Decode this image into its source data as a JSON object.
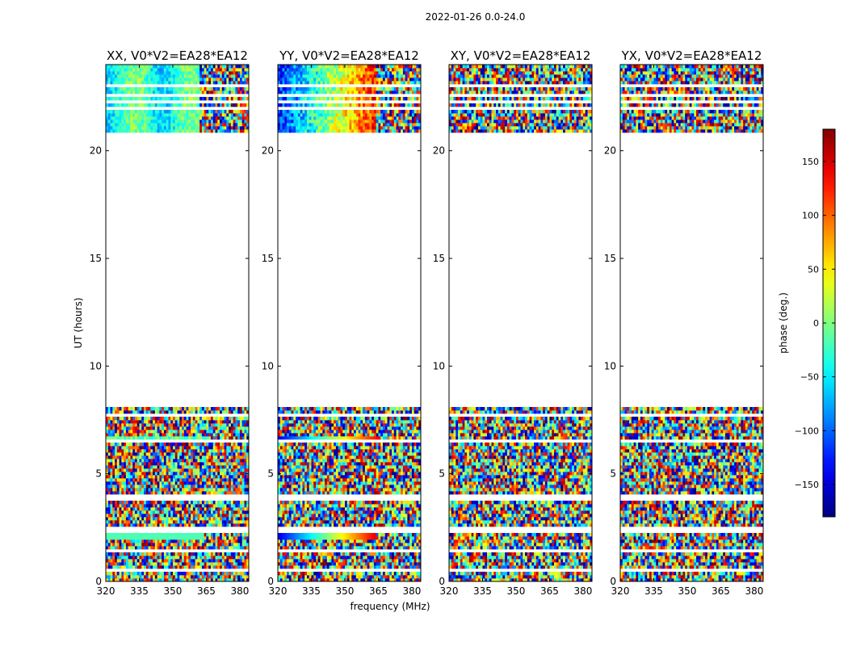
{
  "figure_title": "2022-01-26 0.0-24.0",
  "chart_data": {
    "type": "heatmap",
    "suptitle": "2022-01-26 0.0-24.0",
    "xlabel": "frequency (MHz)",
    "ylabel": "UT (hours)",
    "xlim": [
      320,
      384
    ],
    "ylim": [
      0,
      24
    ],
    "xticks": [
      320,
      335,
      350,
      365,
      380
    ],
    "yticks": [
      0,
      5,
      10,
      15,
      20
    ],
    "colormap": "jet",
    "colorbar": {
      "label": "phase (deg.)",
      "range": [
        -180,
        180
      ],
      "ticks": [
        -150,
        -100,
        -50,
        0,
        50,
        100,
        150
      ],
      "tick_labels": [
        "−150",
        "−100",
        "−50",
        "0",
        "50",
        "100",
        "150"
      ]
    },
    "data_coverage_hours": [
      [
        0.0,
        8.1
      ],
      [
        20.8,
        24.0
      ]
    ],
    "blank_rows_hours": [
      0.55,
      1.45,
      1.65,
      2.3,
      2.5,
      3.85,
      4.0,
      6.3,
      6.55,
      6.75,
      7.75,
      22.0,
      22.25,
      22.6,
      22.8,
      23.05,
      23.4
    ],
    "panels": [
      {
        "title": "XX, V0*V2=EA28*EA12",
        "pattern": "XX"
      },
      {
        "title": "YY, V0*V2=EA28*EA12",
        "pattern": "YY"
      },
      {
        "title": "XY, V0*V2=EA28*EA12",
        "pattern": "XY"
      },
      {
        "title": "YX, V0*V2=EA28*EA12",
        "pattern": "YX"
      }
    ]
  },
  "colors": {
    "axis": "#000000",
    "background": "#ffffff"
  }
}
